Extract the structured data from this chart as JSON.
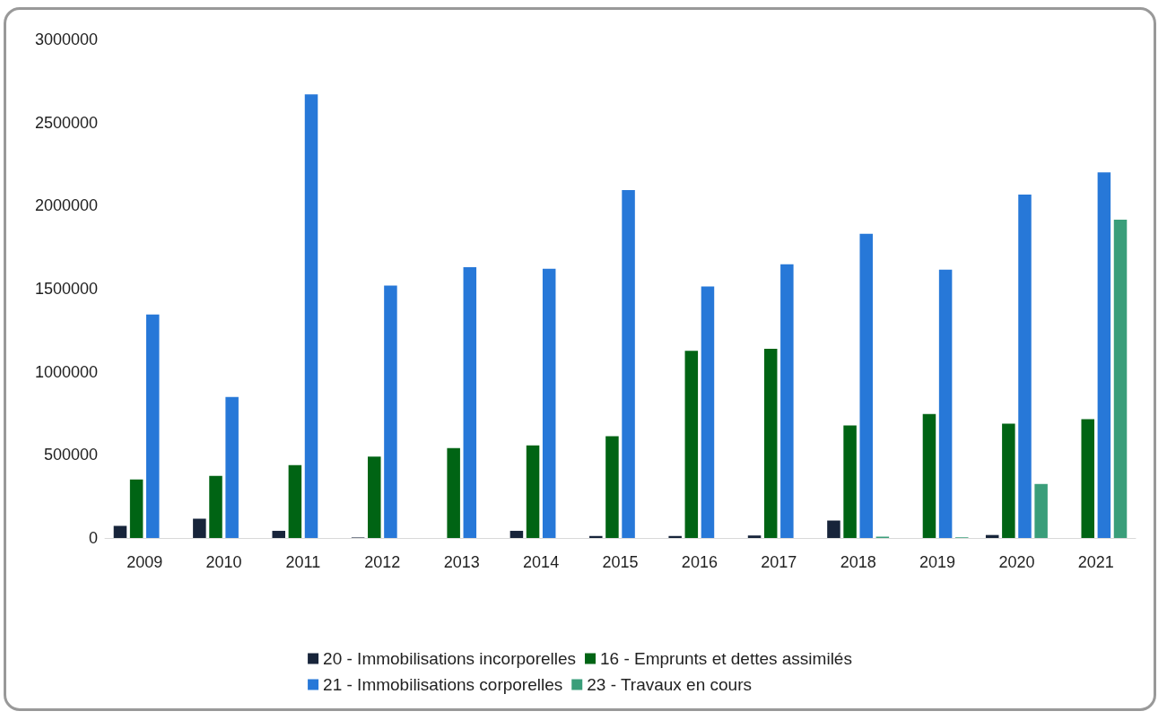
{
  "chart_data": {
    "type": "bar",
    "categories": [
      "2009",
      "2010",
      "2011",
      "2012",
      "2013",
      "2014",
      "2015",
      "2016",
      "2017",
      "2018",
      "2019",
      "2020",
      "2021"
    ],
    "series": [
      {
        "name": "20 - Immobilisations incorporelles",
        "color": "#17243a",
        "values": [
          73000,
          116000,
          43000,
          3000,
          0,
          43000,
          12000,
          12000,
          15000,
          105000,
          null,
          18000,
          null
        ]
      },
      {
        "name": "16 - Emprunts et dettes assimilés",
        "color": "#006414",
        "values": [
          352000,
          373000,
          439000,
          489000,
          541000,
          557000,
          612000,
          1127000,
          1138000,
          677000,
          746000,
          688000,
          715000
        ]
      },
      {
        "name": "21 - Immobilisations corporelles",
        "color": "#2778d8",
        "values": [
          1345000,
          848000,
          2670000,
          1519000,
          1630000,
          1620000,
          2093000,
          1513000,
          1647000,
          1830000,
          1615000,
          2066000,
          2200000
        ]
      },
      {
        "name": "23 - Travaux en cours",
        "color": "#3a9e7a",
        "values": [
          0,
          0,
          0,
          0,
          0,
          0,
          0,
          0,
          0,
          8000,
          4000,
          325000,
          1916000
        ]
      }
    ],
    "ylim": [
      0,
      3000000
    ],
    "yticks": [
      0,
      500000,
      1000000,
      1500000,
      2000000,
      2500000,
      3000000
    ],
    "grid": false,
    "legend": "bottom"
  }
}
